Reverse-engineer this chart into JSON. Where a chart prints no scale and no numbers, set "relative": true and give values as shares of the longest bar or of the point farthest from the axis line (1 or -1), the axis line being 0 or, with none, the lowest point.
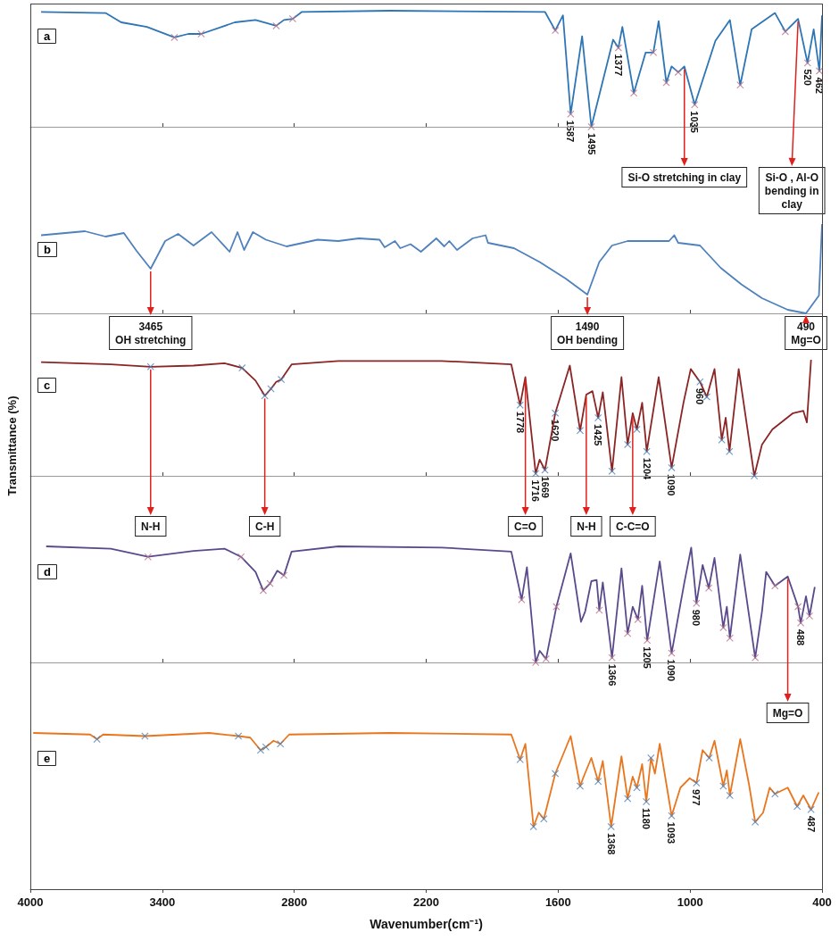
{
  "chart_data": [
    {
      "type": "line",
      "title": "a",
      "relative": true,
      "xlim": [
        4000,
        400
      ],
      "xticks": [
        4000,
        3400,
        2800,
        2200,
        1600,
        1000,
        400
      ],
      "tick_labels": false,
      "series": [
        {
          "marker": "none",
          "color": "#2e75b6",
          "x": [
            3951,
            3658,
            3587,
            3470,
            3345,
            3282,
            3223,
            3070,
            2976,
            2882,
            2847,
            2807,
            2765,
            2365,
            1660,
            1613,
            1578,
            1543,
            1491,
            1449,
            1350,
            1326,
            1308,
            1256,
            1202,
            1167,
            1143,
            1108,
            1084,
            1054,
            1026,
            979,
            885,
            819,
            772,
            720,
            614,
            567,
            509,
            466,
            438,
            412,
            400
          ],
          "values": [
            0.99,
            0.98,
            0.9,
            0.86,
            0.77,
            0.8,
            0.8,
            0.9,
            0.92,
            0.87,
            0.92,
            0.93,
            0.99,
            1,
            0.99,
            0.83,
            0.96,
            0.11,
            0.78,
            0,
            0.75,
            0.68,
            0.86,
            0.29,
            0.64,
            0.64,
            0.91,
            0.38,
            0.52,
            0.47,
            0.52,
            0.19,
            0.74,
            0.92,
            0.36,
            0.84,
            0.98,
            0.82,
            0.93,
            0.55,
            0.84,
            0.48,
            0.96
          ]
        },
        {
          "type": "scatter",
          "marker": "cross",
          "color": "#b8748a",
          "x": [
            3345,
            3223,
            2882,
            2807,
            1613,
            1543,
            1449,
            1326,
            1256,
            1167,
            1108,
            1054,
            979,
            772,
            567,
            466,
            412
          ],
          "values": [
            0.77,
            0.8,
            0.87,
            0.93,
            0.83,
            0.11,
            0,
            0.68,
            0.29,
            0.64,
            0.38,
            0.47,
            0.19,
            0.36,
            0.82,
            0.55,
            0.48
          ]
        }
      ],
      "annotations": [
        {
          "text": "1587",
          "x": 1543,
          "y": 0.11
        },
        {
          "text": "1495",
          "x": 1449,
          "y": 0
        },
        {
          "text": "1377",
          "x": 1326,
          "y": 0.68
        },
        {
          "text": "1035",
          "x": 979,
          "y": 0.19
        },
        {
          "text": "520",
          "x": 466,
          "y": 0.55
        },
        {
          "text": "462",
          "x": 412,
          "y": 0.48
        },
        {
          "text": "Si-O stretching in clay",
          "x": 1026,
          "y": 0.52
        },
        {
          "text": "Si-O , Al-O\nbending in\nclay",
          "x": 509,
          "y": 0.93
        }
      ]
    },
    {
      "type": "line",
      "title": "b",
      "relative": true,
      "xlim": [
        4000,
        400
      ],
      "xticks": [
        4000,
        3400,
        2800,
        2200,
        1600,
        1000,
        400
      ],
      "tick_labels": false,
      "series": [
        {
          "marker": "none",
          "color": "#4f81bd",
          "x": [
            3951,
            3752,
            3658,
            3575,
            3517,
            3453,
            3387,
            3328,
            3258,
            3176,
            3094,
            3058,
            3028,
            2988,
            2929,
            2835,
            2694,
            2600,
            2506,
            2412,
            2389,
            2342,
            2318,
            2271,
            2224,
            2154,
            2118,
            2095,
            2060,
            1989,
            1930,
            1919,
            1801,
            1684,
            1566,
            1467,
            1413,
            1355,
            1284,
            1096,
            1072,
            1054,
            955,
            861,
            767,
            673,
            556,
            473,
            414,
            400
          ],
          "values": [
            0.875,
            0.92,
            0.86,
            0.9,
            0.7,
            0.5,
            0.81,
            0.89,
            0.76,
            0.91,
            0.69,
            0.91,
            0.71,
            0.91,
            0.825,
            0.75,
            0.825,
            0.81,
            0.84,
            0.825,
            0.74,
            0.81,
            0.73,
            0.775,
            0.69,
            0.84,
            0.75,
            0.81,
            0.71,
            0.84,
            0.875,
            0.79,
            0.73,
            0.575,
            0.39,
            0.21,
            0.575,
            0.76,
            0.81,
            0.81,
            0.875,
            0.79,
            0.76,
            0.51,
            0.325,
            0.17,
            0.04,
            0,
            0.2,
            1
          ]
        }
      ],
      "annotations": [
        {
          "text": "3465\nOH stretching",
          "x": 3453,
          "y": 0.5
        },
        {
          "text": "1490\nOH bending",
          "x": 1467,
          "y": 0.21
        },
        {
          "text": "490\nMg=O",
          "x": 473,
          "y": 0
        }
      ]
    },
    {
      "type": "line",
      "title": "c",
      "relative": true,
      "xlim": [
        4000,
        400
      ],
      "xticks": [
        4000,
        3400,
        2800,
        2200,
        1600,
        1000,
        400
      ],
      "tick_labels": false,
      "ylabel": "Transmittance (%)",
      "series": [
        {
          "marker": "none",
          "color": "#8b2525",
          "x": [
            3951,
            3634,
            3453,
            3258,
            3117,
            3037,
            2976,
            2934,
            2906,
            2882,
            2859,
            2812,
            2600,
            2130,
            1813,
            1773,
            1749,
            1702,
            1684,
            1660,
            1613,
            1547,
            1500,
            1472,
            1444,
            1418,
            1397,
            1355,
            1312,
            1284,
            1261,
            1242,
            1218,
            1197,
            1143,
            1084,
            1030,
            997,
            955,
            924,
            889,
            856,
            838,
            821,
            779,
            708,
            673,
            626,
            532,
            485,
            469,
            450
          ],
          "values": [
            0.98,
            0.96,
            0.94,
            0.95,
            0.97,
            0.93,
            0.82,
            0.69,
            0.75,
            0.81,
            0.83,
            0.96,
            0.99,
            0.99,
            0.96,
            0.61,
            0.85,
            0.02,
            0.14,
            0.05,
            0.54,
            0.95,
            0.39,
            0.7,
            0.73,
            0.5,
            0.72,
            0.04,
            0.85,
            0.27,
            0.54,
            0.4,
            0.63,
            0.21,
            0.85,
            0.07,
            0.63,
            0.92,
            0.81,
            0.68,
            0.92,
            0.31,
            0.5,
            0.21,
            0.92,
            0,
            0.27,
            0.4,
            0.54,
            0.56,
            0.46,
            1
          ]
        },
        {
          "type": "scatter",
          "marker": "cross",
          "color": "#4a80b8",
          "x": [
            3453,
            3037,
            2934,
            2906,
            2859,
            1773,
            1702,
            1660,
            1613,
            1500,
            1418,
            1355,
            1284,
            1242,
            1197,
            1084,
            955,
            924,
            856,
            821,
            708
          ],
          "values": [
            0.94,
            0.93,
            0.69,
            0.75,
            0.83,
            0.61,
            0.02,
            0.05,
            0.54,
            0.39,
            0.5,
            0.04,
            0.27,
            0.4,
            0.21,
            0.07,
            0.81,
            0.68,
            0.31,
            0.21,
            0
          ]
        }
      ],
      "annotations": [
        {
          "text": "1778",
          "x": 1773,
          "y": 0.61
        },
        {
          "text": "1716",
          "x": 1702,
          "y": 0.02
        },
        {
          "text": "1669",
          "x": 1660,
          "y": 0.05
        },
        {
          "text": "1620",
          "x": 1613,
          "y": 0.54
        },
        {
          "text": "1425",
          "x": 1418,
          "y": 0.5
        },
        {
          "text": "1204",
          "x": 1197,
          "y": 0.21
        },
        {
          "text": "1090",
          "x": 1084,
          "y": 0.07
        },
        {
          "text": "960",
          "x": 955,
          "y": 0.81
        },
        {
          "text": "N-H",
          "x": 3453,
          "y": 0.94
        },
        {
          "text": "C-H",
          "x": 2934,
          "y": 0.69
        },
        {
          "text": "C=O",
          "x": 1749,
          "y": 0.85
        },
        {
          "text": "N-H",
          "x": 1472,
          "y": 0.7
        },
        {
          "text": "C-C=O",
          "x": 1261,
          "y": 0.54
        }
      ]
    },
    {
      "type": "line",
      "title": "d",
      "relative": true,
      "xlim": [
        4000,
        400
      ],
      "xticks": [
        4000,
        3400,
        2800,
        2200,
        1600,
        1000,
        400
      ],
      "tick_labels": false,
      "series": [
        {
          "marker": "none",
          "color": "#5a4a8c",
          "x": [
            3928,
            3634,
            3465,
            3258,
            3117,
            3042,
            2976,
            2941,
            2910,
            2877,
            2847,
            2812,
            2600,
            2130,
            1813,
            1766,
            1742,
            1702,
            1684,
            1655,
            1608,
            1543,
            1496,
            1477,
            1449,
            1425,
            1413,
            1397,
            1355,
            1312,
            1284,
            1261,
            1237,
            1218,
            1195,
            1138,
            1084,
            1026,
            995,
            971,
            943,
            915,
            889,
            849,
            833,
            819,
            772,
            704,
            673,
            654,
            614,
            556,
            509,
            497,
            473,
            457,
            433
          ],
          "values": [
            1,
            0.98,
            0.91,
            0.96,
            0.98,
            0.91,
            0.78,
            0.62,
            0.68,
            0.79,
            0.75,
            0.955,
            1,
            0.99,
            0.955,
            0.54,
            0.82,
            0,
            0.1,
            0.03,
            0.48,
            0.94,
            0.35,
            0.44,
            0.7,
            0.71,
            0.45,
            0.69,
            0.04,
            0.81,
            0.25,
            0.48,
            0.37,
            0.66,
            0.19,
            0.87,
            0.08,
            0.69,
            0.99,
            0.51,
            0.84,
            0.64,
            0.9,
            0.3,
            0.48,
            0.21,
            0.93,
            0.04,
            0.44,
            0.78,
            0.66,
            0.74,
            0.48,
            0.34,
            0.57,
            0.4,
            0.65
          ]
        },
        {
          "type": "scatter",
          "marker": "cross",
          "color": "#b8748a",
          "x": [
            3465,
            3042,
            2941,
            2910,
            2847,
            1766,
            1702,
            1655,
            1608,
            1413,
            1355,
            1284,
            1237,
            1195,
            1084,
            971,
            915,
            849,
            819,
            704,
            614,
            509,
            497,
            457
          ],
          "values": [
            0.91,
            0.91,
            0.62,
            0.68,
            0.75,
            0.54,
            0,
            0.03,
            0.48,
            0.45,
            0.04,
            0.25,
            0.37,
            0.19,
            0.08,
            0.51,
            0.64,
            0.3,
            0.21,
            0.04,
            0.66,
            0.48,
            0.34,
            0.4
          ]
        }
      ],
      "annotations": [
        {
          "text": "1366",
          "x": 1355,
          "y": 0.04
        },
        {
          "text": "1205",
          "x": 1195,
          "y": 0.19
        },
        {
          "text": "1090",
          "x": 1084,
          "y": 0.08
        },
        {
          "text": "980",
          "x": 971,
          "y": 0.51
        },
        {
          "text": "488",
          "x": 497,
          "y": 0.34
        },
        {
          "text": "Mg=O",
          "x": 556,
          "y": 0.74
        }
      ]
    },
    {
      "type": "line",
      "title": "e",
      "relative": true,
      "xlim": [
        4000,
        400
      ],
      "xticks": [
        4000,
        3400,
        2800,
        2200,
        1600,
        1000,
        400
      ],
      "tick_labels": "x",
      "xlabel": "Wavenumber(cm⁻¹)",
      "series": [
        {
          "marker": "none",
          "color": "#e8761e",
          "x": [
            3987,
            3728,
            3697,
            3669,
            3479,
            3187,
            3054,
            3000,
            2953,
            2929,
            2894,
            2863,
            2823,
            2365,
            1813,
            1773,
            1749,
            1712,
            1688,
            1665,
            1613,
            1543,
            1500,
            1484,
            1449,
            1418,
            1397,
            1359,
            1312,
            1284,
            1261,
            1242,
            1218,
            1199,
            1178,
            1160,
            1138,
            1084,
            1044,
            1002,
            971,
            943,
            913,
            889,
            849,
            833,
            819,
            772,
            732,
            704,
            668,
            638,
            614,
            556,
            513,
            485,
            450,
            415
          ],
          "values": [
            1,
            0.99,
            0.96,
            0.99,
            0.98,
            1,
            0.98,
            0.97,
            0.89,
            0.91,
            0.95,
            0.93,
            0.99,
            1,
            0.99,
            0.83,
            0.93,
            0.4,
            0.49,
            0.45,
            0.74,
            0.98,
            0.66,
            0.72,
            0.84,
            0.69,
            0.82,
            0.4,
            0.85,
            0.58,
            0.72,
            0.65,
            0.8,
            0.56,
            0.84,
            0.74,
            0.93,
            0.47,
            0.65,
            0.71,
            0.68,
            0.89,
            0.84,
            0.95,
            0.66,
            0.76,
            0.6,
            0.96,
            0.67,
            0.43,
            0.49,
            0.65,
            0.61,
            0.65,
            0.53,
            0.6,
            0.51,
            0.62
          ]
        },
        {
          "type": "scatter",
          "marker": "cross",
          "color": "#4a80b8",
          "x": [
            3697,
            3479,
            3054,
            2953,
            2929,
            2863,
            1773,
            1712,
            1665,
            1613,
            1500,
            1418,
            1359,
            1284,
            1242,
            1199,
            1178,
            1084,
            971,
            913,
            849,
            819,
            704,
            614,
            513,
            450
          ],
          "values": [
            0.96,
            0.98,
            0.98,
            0.89,
            0.91,
            0.93,
            0.83,
            0.4,
            0.45,
            0.74,
            0.66,
            0.69,
            0.4,
            0.58,
            0.65,
            0.56,
            0.84,
            0.47,
            0.68,
            0.84,
            0.66,
            0.6,
            0.43,
            0.61,
            0.53,
            0.51
          ]
        }
      ],
      "annotations": [
        {
          "text": "1368",
          "x": 1359,
          "y": 0.4
        },
        {
          "text": "1180",
          "x": 1199,
          "y": 0.56
        },
        {
          "text": "1093",
          "x": 1084,
          "y": 0.47
        },
        {
          "text": "977",
          "x": 971,
          "y": 0.68
        },
        {
          "text": "487",
          "x": 450,
          "y": 0.51
        }
      ]
    }
  ]
}
